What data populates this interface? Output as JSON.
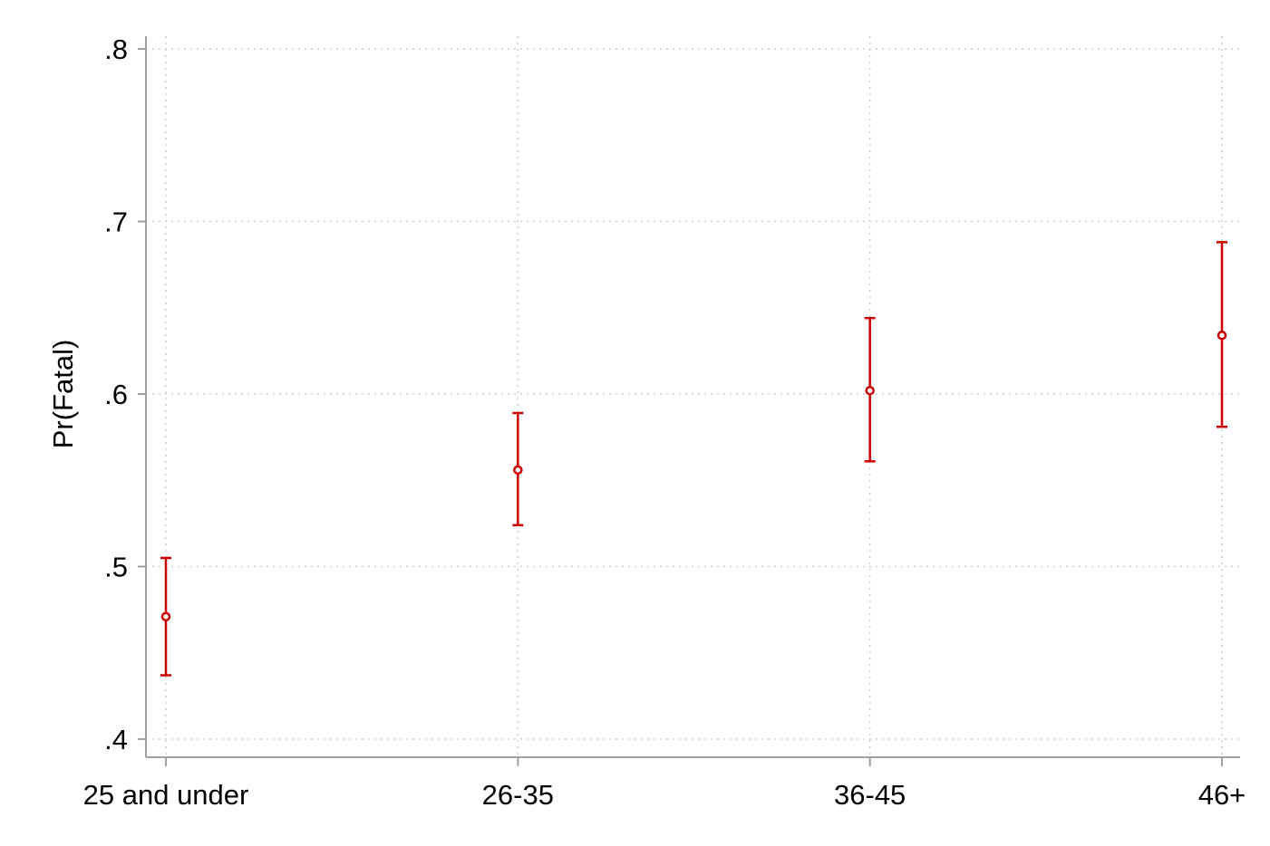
{
  "chart_data": {
    "type": "scatter",
    "title": "",
    "xlabel": "",
    "ylabel": "Pr(Fatal)",
    "ylim": [
      0.4,
      0.8
    ],
    "yticks": [
      0.4,
      0.5,
      0.6,
      0.7,
      0.8
    ],
    "ytick_labels": [
      ".4",
      ".5",
      ".6",
      ".7",
      ".8"
    ],
    "categories": [
      "25 and under",
      "26-35",
      "36-45",
      "46+"
    ],
    "series": [
      {
        "values": [
          0.471,
          0.556,
          0.602,
          0.634
        ],
        "ci_lower": [
          0.437,
          0.524,
          0.561,
          0.581
        ],
        "ci_upper": [
          0.505,
          0.589,
          0.644,
          0.688
        ],
        "color": "#cc0000"
      }
    ],
    "grid": true,
    "legend": "none"
  }
}
